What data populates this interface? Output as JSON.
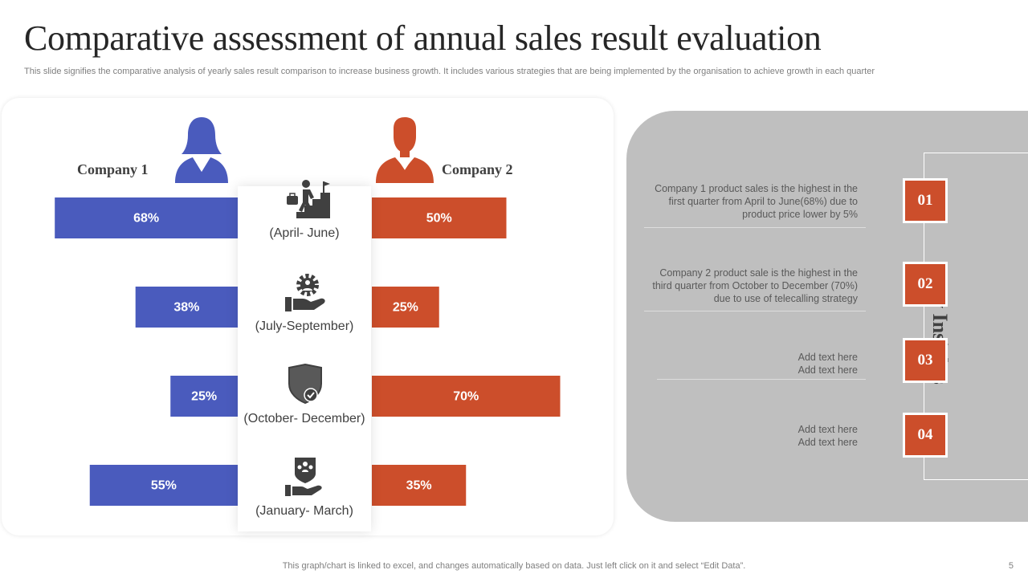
{
  "title": "Comparative assessment of annual sales result evaluation",
  "subtitle": "This slide signifies the comparative analysis of yearly sales result comparison to increase business growth. It includes various strategies that are being implemented by the organisation to achieve growth in each quarter",
  "colors": {
    "company1": "#4a5bbd",
    "company2": "#cc4e2b",
    "panel": "#bfbfbf"
  },
  "chart_data": {
    "type": "bar",
    "title": "",
    "categories": [
      "(April- June)",
      "(July-September)",
      "(October- December)",
      "(January- March)"
    ],
    "series": [
      {
        "name": "Company 1",
        "values": [
          68,
          38,
          25,
          55
        ],
        "labels": [
          "68%",
          "38%",
          "25%",
          "55%"
        ]
      },
      {
        "name": "Company 2",
        "values": [
          50,
          25,
          70,
          35
        ],
        "labels": [
          "50%",
          "25%",
          "70%",
          "35%"
        ]
      }
    ],
    "xlim": [
      0,
      100
    ],
    "unit": "%",
    "legend": "top"
  },
  "icons": [
    "success-stairs-icon",
    "gear-hand-icon",
    "shield-check-icon",
    "team-hand-icon"
  ],
  "insights": {
    "heading": "Key Insights",
    "items": [
      {
        "number": "01",
        "text": "Company 1 product sales is the highest in the first quarter from April to June(68%) due to product price lower by 5%"
      },
      {
        "number": "02",
        "text": "Company 2 product sale is the highest in the third quarter from October to December (70%) due to use of telecalling strategy"
      },
      {
        "number": "03",
        "text": "Add text here Add text here"
      },
      {
        "number": "04",
        "text": "Add text here Add text here"
      }
    ]
  },
  "footer": "This graph/chart is linked to excel, and changes automatically based on data. Just left click on it and select “Edit Data”.",
  "page_number": "5"
}
